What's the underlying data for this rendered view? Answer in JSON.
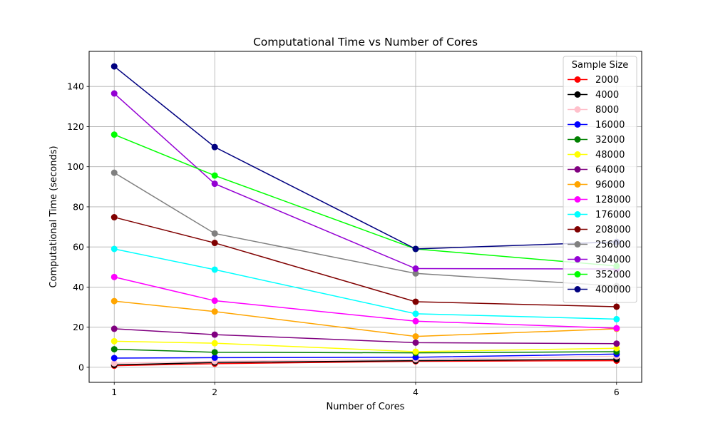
{
  "chart_data": {
    "type": "line",
    "title": "Computational Time vs Number of Cores",
    "xlabel": "Number of Cores",
    "ylabel": "Computational Time (seconds)",
    "x": [
      1,
      2,
      4,
      6
    ],
    "xticks": [
      1,
      2,
      4,
      6
    ],
    "xlim": [
      0.75,
      6.25
    ],
    "yticks": [
      0,
      20,
      40,
      60,
      80,
      100,
      120,
      140
    ],
    "ylim": [
      -7.5,
      157.5
    ],
    "grid": true,
    "legend": {
      "title": "Sample Size",
      "placement": "top-right"
    },
    "series": [
      {
        "name": "2000",
        "color": "#ff0000",
        "values": [
          0.8,
          1.8,
          3.0,
          3.3
        ]
      },
      {
        "name": "4000",
        "color": "#000000",
        "values": [
          1.2,
          2.4,
          3.3,
          4.0
        ]
      },
      {
        "name": "8000",
        "color": "#ffc0cb",
        "values": [
          2.0,
          3.0,
          4.0,
          5.5
        ]
      },
      {
        "name": "16000",
        "color": "#0000ff",
        "values": [
          4.6,
          4.8,
          5.0,
          6.6
        ]
      },
      {
        "name": "32000",
        "color": "#008000",
        "values": [
          9.0,
          7.5,
          7.2,
          7.8
        ]
      },
      {
        "name": "48000",
        "color": "#ffff00",
        "values": [
          13.0,
          12.0,
          7.8,
          9.5
        ]
      },
      {
        "name": "64000",
        "color": "#800080",
        "values": [
          19.2,
          16.3,
          12.3,
          11.8
        ]
      },
      {
        "name": "96000",
        "color": "#ffa500",
        "values": [
          33.0,
          27.8,
          15.4,
          19.2
        ]
      },
      {
        "name": "128000",
        "color": "#ff00ff",
        "values": [
          45.0,
          33.2,
          23.0,
          19.5
        ]
      },
      {
        "name": "176000",
        "color": "#00ffff",
        "values": [
          59.0,
          48.7,
          26.7,
          24.0
        ]
      },
      {
        "name": "208000",
        "color": "#800000",
        "values": [
          74.8,
          62.0,
          32.7,
          30.2
        ]
      },
      {
        "name": "256000",
        "color": "#808080",
        "values": [
          97.0,
          66.7,
          46.8,
          40.5
        ]
      },
      {
        "name": "304000",
        "color": "#9400d3",
        "values": [
          136.5,
          91.5,
          49.2,
          49.0
        ]
      },
      {
        "name": "352000",
        "color": "#00ff00",
        "values": [
          116.0,
          95.6,
          59.0,
          50.5
        ]
      },
      {
        "name": "400000",
        "color": "#000080",
        "values": [
          150.0,
          109.8,
          59.0,
          62.5
        ]
      }
    ]
  }
}
